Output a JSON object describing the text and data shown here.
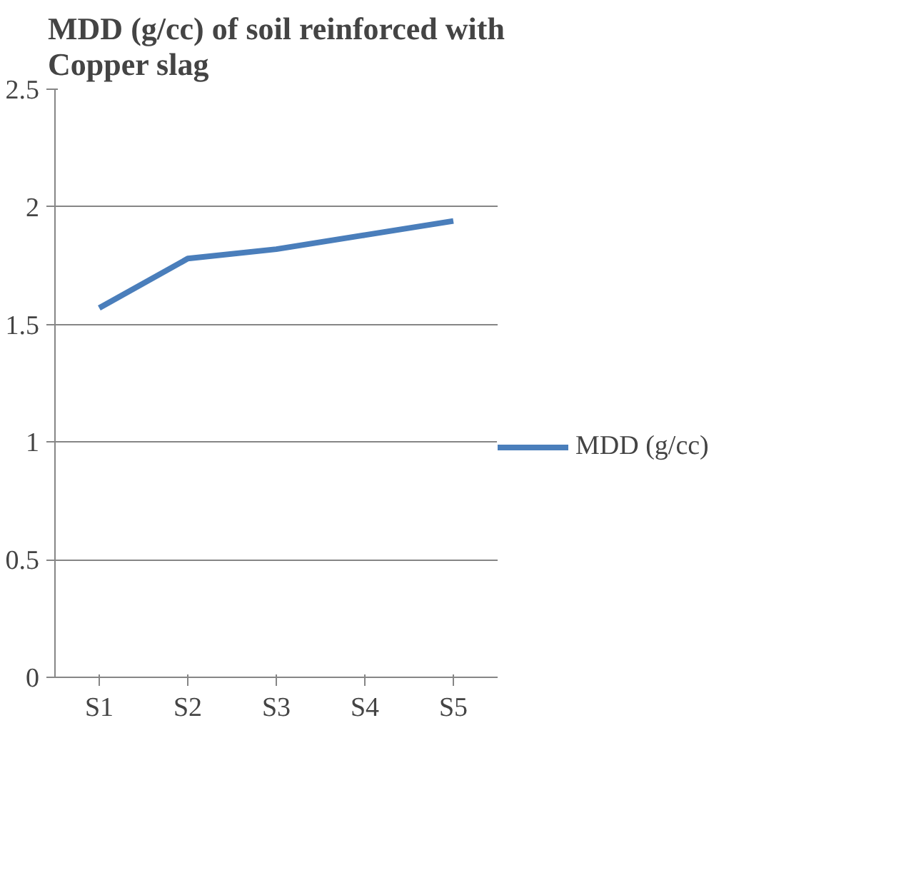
{
  "chart_data": {
    "type": "line",
    "title": "MDD (g/cc) of soil reinforced with Copper slag",
    "categories": [
      "S1",
      "S2",
      "S3",
      "S4",
      "S5"
    ],
    "series": [
      {
        "name": "MDD (g/cc)",
        "color": "#4a7ebb",
        "values": [
          1.57,
          1.78,
          1.82,
          1.88,
          1.94
        ]
      }
    ],
    "ylim": [
      0,
      2.5
    ],
    "yticks": [
      0,
      0.5,
      1,
      1.5,
      2,
      2.5
    ],
    "grid": "y",
    "legend": "right"
  }
}
